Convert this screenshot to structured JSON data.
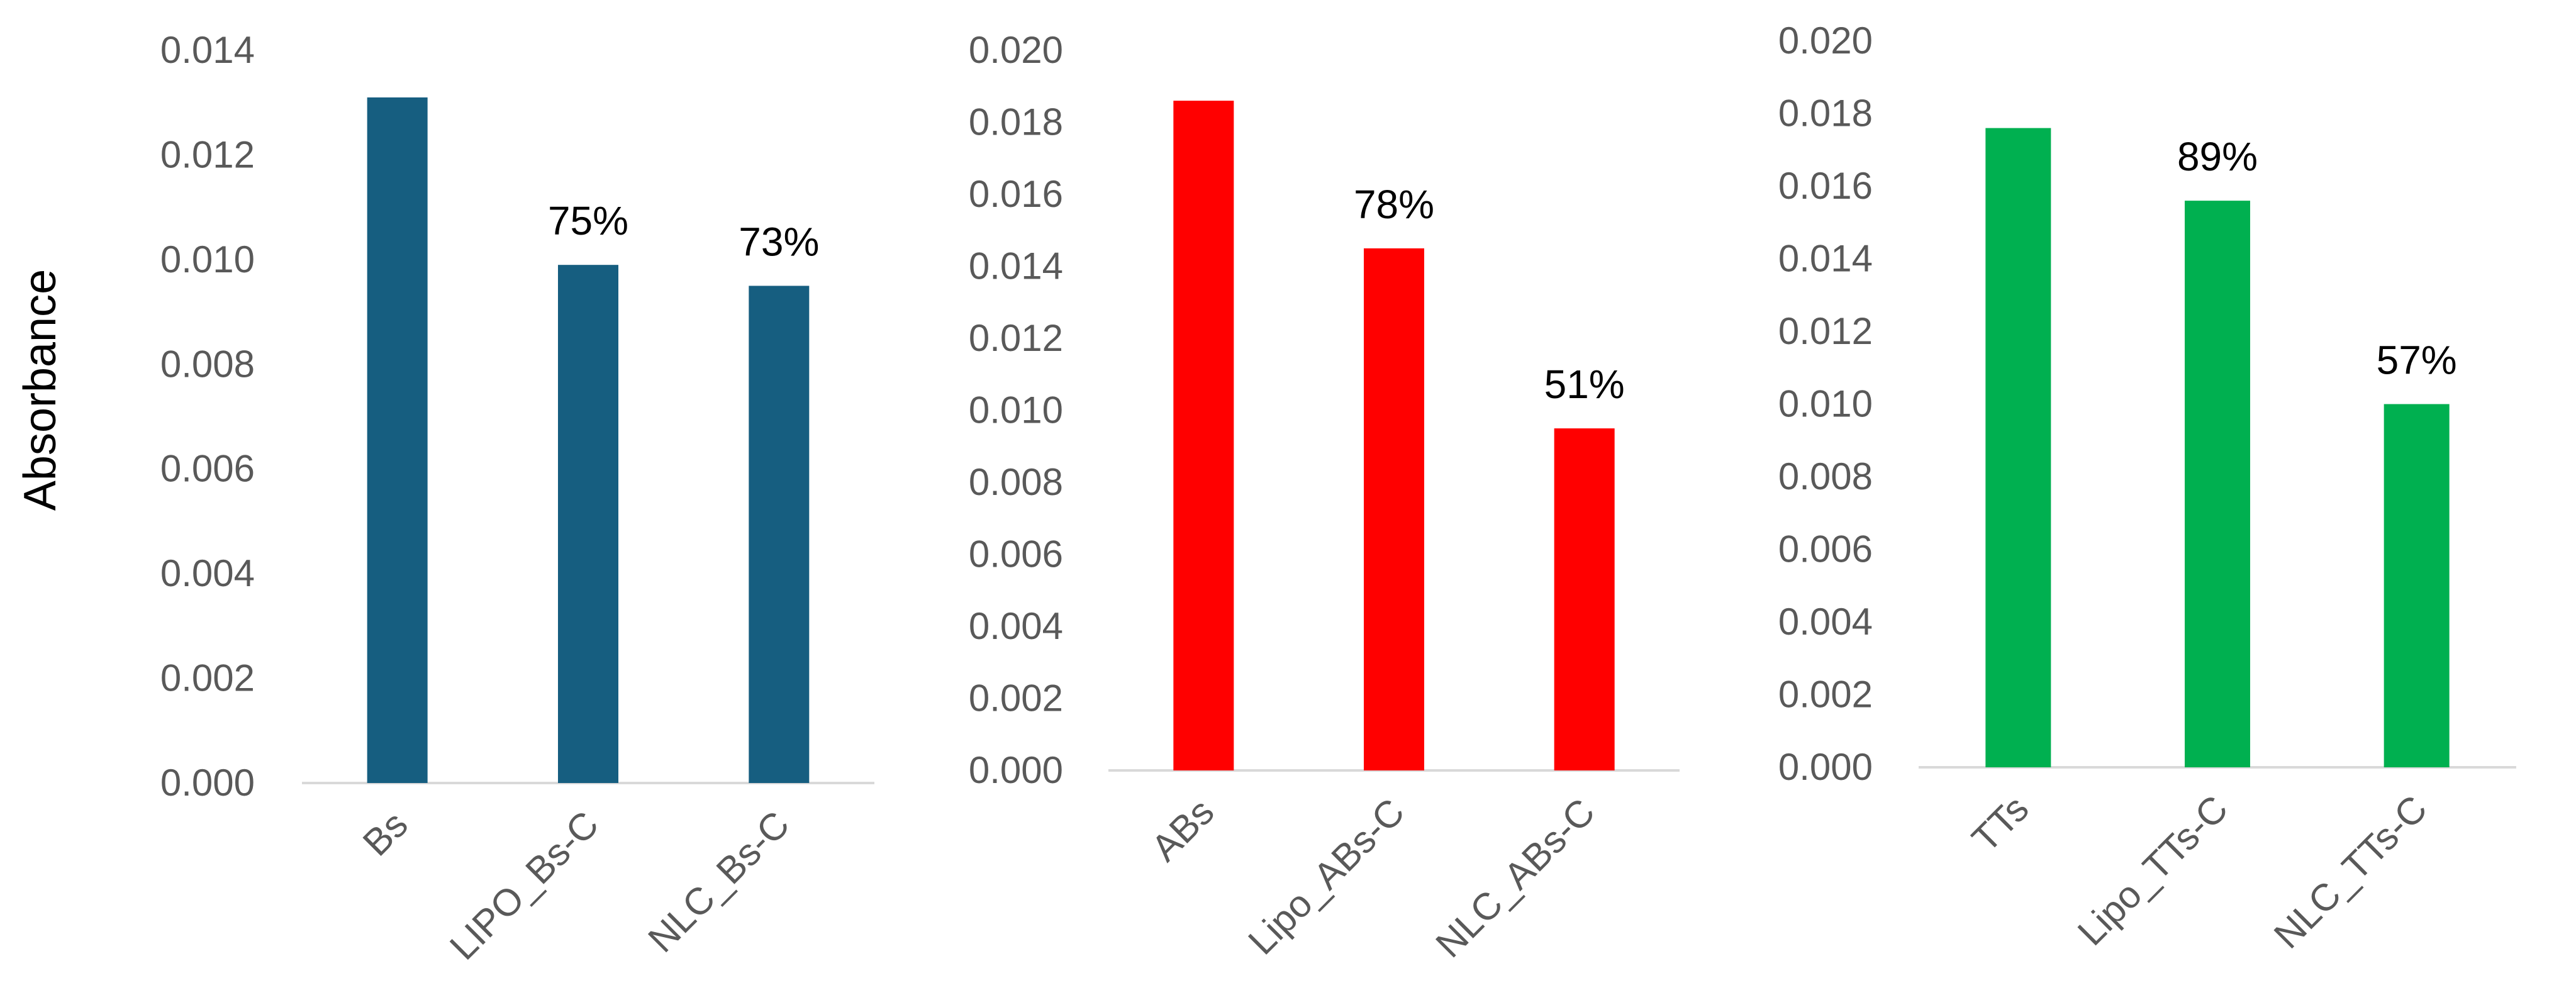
{
  "y_axis_title": "Absorbance",
  "chart_data": [
    {
      "type": "bar",
      "categories": [
        "Bs",
        "LIPO_Bs-C",
        "NLC_Bs-C"
      ],
      "values": [
        0.0131,
        0.0099,
        0.0095
      ],
      "data_labels": [
        "",
        "75%",
        "73%"
      ],
      "ylim": [
        0,
        0.014
      ],
      "yticks": [
        "0.000",
        "0.002",
        "0.004",
        "0.006",
        "0.008",
        "0.010",
        "0.012",
        "0.014"
      ],
      "ylabel": "Absorbance",
      "xlabel": "",
      "title": "",
      "color": "#165e80",
      "grid": false
    },
    {
      "type": "bar",
      "categories": [
        "ABs",
        "Lipo_ABs-C",
        "NLC_ABs-C"
      ],
      "values": [
        0.0186,
        0.0145,
        0.0095
      ],
      "data_labels": [
        "",
        "78%",
        "51%"
      ],
      "ylim": [
        0,
        0.02
      ],
      "yticks": [
        "0.000",
        "0.002",
        "0.004",
        "0.006",
        "0.008",
        "0.010",
        "0.012",
        "0.014",
        "0.016",
        "0.018",
        "0.020"
      ],
      "ylabel": "",
      "xlabel": "",
      "title": "",
      "color": "#ff0000",
      "grid": false
    },
    {
      "type": "bar",
      "categories": [
        "TTs",
        "Lipo_TTs-C",
        "NLC_TTs-C"
      ],
      "values": [
        0.0176,
        0.0156,
        0.01
      ],
      "data_labels": [
        "",
        "89%",
        "57%"
      ],
      "ylim": [
        0,
        0.02
      ],
      "yticks": [
        "0.000",
        "0.002",
        "0.004",
        "0.006",
        "0.008",
        "0.010",
        "0.012",
        "0.014",
        "0.016",
        "0.018",
        "0.020"
      ],
      "ylabel": "",
      "xlabel": "",
      "title": "",
      "color": "#00b050",
      "grid": false
    }
  ]
}
